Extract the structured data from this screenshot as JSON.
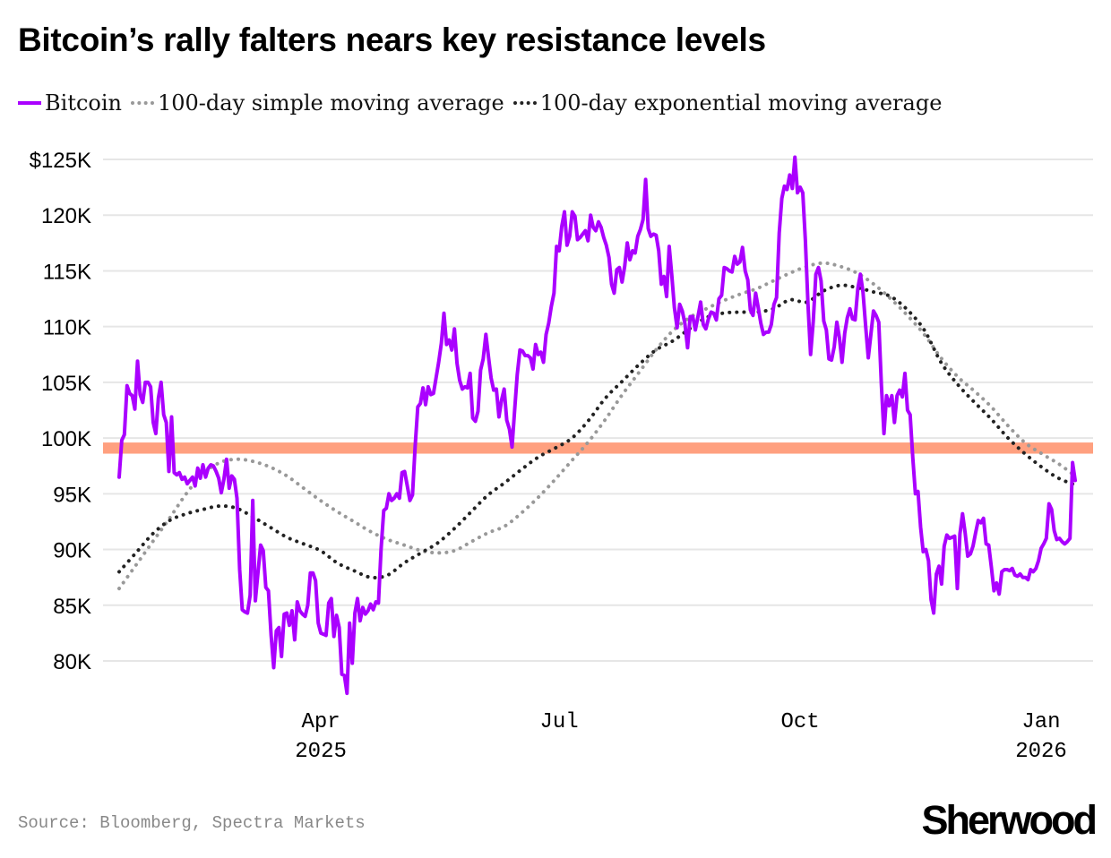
{
  "chart_data": {
    "type": "line",
    "title": "Bitcoin’s rally falters nears key resistance levels",
    "legend": [
      {
        "name": "Bitcoin",
        "style": "solid",
        "color": "#aa00ff"
      },
      {
        "name": "100-day simple moving average",
        "style": "dotted",
        "color": "#999999"
      },
      {
        "name": "100-day exponential moving average",
        "style": "dotted",
        "color": "#222222"
      }
    ],
    "legend_position": "top-left",
    "xlabel": "",
    "ylabel": "",
    "ylim": [
      77000,
      125000
    ],
    "y_ticks": [
      {
        "value": 125000,
        "label": "$125K"
      },
      {
        "value": 120000,
        "label": "120K"
      },
      {
        "value": 115000,
        "label": "115K"
      },
      {
        "value": 110000,
        "label": "110K"
      },
      {
        "value": 105000,
        "label": "105K"
      },
      {
        "value": 100000,
        "label": "100K"
      },
      {
        "value": 95000,
        "label": "95K"
      },
      {
        "value": 90000,
        "label": "90K"
      },
      {
        "value": 85000,
        "label": "85K"
      },
      {
        "value": 80000,
        "label": "80K"
      }
    ],
    "x_range_days": [
      0,
      365
    ],
    "x_start_date": "2025-01-14",
    "x_ticks": [
      {
        "day": 77,
        "label": "Apr",
        "sublabel": "2025"
      },
      {
        "day": 168,
        "label": "Jul",
        "sublabel": ""
      },
      {
        "day": 260,
        "label": "Oct",
        "sublabel": ""
      },
      {
        "day": 352,
        "label": "Jan",
        "sublabel": "2026"
      }
    ],
    "grid": "horizontal",
    "resistance_band": {
      "low": 98600,
      "high": 99600,
      "color": "#ffa07f"
    },
    "series": [
      {
        "name": "Bitcoin",
        "day_step": 1,
        "values": [
          96500,
          99800,
          100300,
          104700,
          104000,
          103800,
          102600,
          106900,
          103900,
          103200,
          105000,
          105000,
          104600,
          101400,
          100400,
          103600,
          105000,
          102100,
          101400,
          97000,
          101900,
          96900,
          96700,
          96900,
          96300,
          96500,
          95900,
          96200,
          96500,
          95700,
          97300,
          96400,
          97600,
          96500,
          97300,
          97600,
          97500,
          97000,
          96400,
          95100,
          96300,
          98100,
          95500,
          96600,
          96300,
          94600,
          88200,
          84600,
          84400,
          84300,
          85900,
          94400,
          85400,
          87900,
          90400,
          89900,
          86600,
          86300,
          82300,
          79400,
          82700,
          83000,
          80400,
          84200,
          84300,
          83200,
          84500,
          81900,
          85300,
          84500,
          84200,
          84000,
          85000,
          87900,
          87900,
          87200,
          83400,
          82500,
          82400,
          82300,
          85200,
          85600,
          82200,
          84100,
          83000,
          78800,
          78700,
          77100,
          83400,
          79800,
          84300,
          85600,
          83600,
          84800,
          84200,
          84500,
          85100,
          84600,
          85300,
          85200,
          90000,
          93500,
          93700,
          95000,
          94400,
          94600,
          95000,
          94600,
          96900,
          97000,
          95700,
          94400,
          94900,
          99200,
          102800,
          103100,
          104500,
          103000,
          104600,
          103900,
          104000,
          105400,
          106800,
          108500,
          111200,
          108400,
          108800,
          107900,
          109800,
          106700,
          105200,
          104400,
          104600,
          104500,
          105800,
          101800,
          101500,
          102400,
          106100,
          107100,
          109300,
          107300,
          105400,
          104300,
          104400,
          101900,
          103400,
          104400,
          101600,
          100800,
          99200,
          102500,
          105700,
          107900,
          107800,
          107400,
          107400,
          107200,
          106200,
          108400,
          107500,
          107700,
          106800,
          109300,
          110300,
          111800,
          113000,
          117200,
          116800,
          119000,
          120300,
          117300,
          118100,
          120300,
          119900,
          117800,
          118000,
          118300,
          118600,
          117700,
          120000,
          118900,
          118600,
          119400,
          118900,
          118000,
          117300,
          116200,
          113800,
          113000,
          115100,
          115300,
          114000,
          115400,
          117500,
          116000,
          116800,
          116600,
          118100,
          118700,
          119600,
          123200,
          118800,
          118100,
          118300,
          118200,
          116800,
          113800,
          114500,
          112700,
          117200,
          114600,
          111700,
          109900,
          112000,
          111400,
          110300,
          108100,
          110900,
          110900,
          109700,
          110900,
          112200,
          110200,
          109800,
          110700,
          111300,
          111200,
          110600,
          112500,
          112800,
          115300,
          115200,
          115000,
          114900,
          116300,
          115600,
          115800,
          117100,
          115000,
          114200,
          111500,
          111000,
          113000,
          111700,
          110300,
          109300,
          109500,
          109500,
          110200,
          112000,
          112600,
          118400,
          121500,
          122600,
          122300,
          123600,
          122400,
          125200,
          122000,
          122500,
          122000,
          117700,
          112000,
          107500,
          110500,
          114700,
          115300,
          114100,
          110500,
          109700,
          107100,
          107000,
          108200,
          110400,
          109000,
          106800,
          109400,
          110800,
          111600,
          110700,
          110600,
          113400,
          114700,
          113100,
          110100,
          107200,
          109300,
          111400,
          111000,
          110400,
          104800,
          100400,
          103800,
          102900,
          103800,
          101400,
          103800,
          104300,
          103700,
          105800,
          102500,
          102100,
          98200,
          95000,
          95200,
          92000,
          89800,
          90000,
          89000,
          85500,
          84300,
          87800,
          88500,
          86900,
          90300,
          91300,
          91000,
          91100,
          91200,
          86500,
          91400,
          93200,
          91500,
          89400,
          89600,
          90300,
          91500,
          92600,
          92400,
          92800,
          90500,
          90400,
          88400,
          86300,
          87000,
          86000,
          88000,
          88200,
          88200,
          88100,
          88300,
          87700,
          87600,
          87800,
          87500,
          87500,
          87300,
          88200,
          88000,
          88300,
          89000,
          90100,
          90500,
          91000,
          94100,
          93600,
          91700,
          90900,
          91000,
          90700,
          90500,
          90700,
          91000,
          97800,
          96200
        ]
      },
      {
        "name": "100-day simple moving average",
        "day_step": 7,
        "values": [
          86500,
          88600,
          90700,
          92800,
          95000,
          96800,
          97800,
          98100,
          97900,
          97400,
          96600,
          95500,
          94400,
          93400,
          92500,
          91600,
          90900,
          90400,
          89900,
          89700,
          89900,
          90700,
          91500,
          92100,
          93300,
          94700,
          96300,
          98000,
          99700,
          101700,
          103900,
          105900,
          107900,
          109600,
          110800,
          111600,
          112300,
          112900,
          113400,
          114100,
          114800,
          115400,
          115700,
          115400,
          114800,
          113800,
          112500,
          111000,
          109300,
          107200,
          105500,
          104200,
          102800,
          101100,
          99600,
          98600,
          97700,
          96600
        ]
      },
      {
        "name": "100-day exponential moving average",
        "day_step": 7,
        "values": [
          88000,
          89700,
          91400,
          92600,
          93200,
          93600,
          93900,
          93700,
          92900,
          92000,
          91100,
          90500,
          89900,
          88800,
          88100,
          87500,
          87700,
          88800,
          89700,
          90600,
          91900,
          93400,
          94900,
          96000,
          97200,
          98300,
          99100,
          100000,
          101600,
          103600,
          105100,
          106600,
          107900,
          108700,
          109800,
          110800,
          111200,
          111300,
          111300,
          111600,
          112400,
          112200,
          113200,
          113700,
          113500,
          113100,
          112700,
          111500,
          109700,
          106800,
          104800,
          103200,
          101700,
          100000,
          98600,
          97400,
          96400,
          95800
        ]
      }
    ]
  },
  "footer": {
    "source": "Source: Bloomberg, Spectra Markets",
    "brand": "Sherwood"
  }
}
